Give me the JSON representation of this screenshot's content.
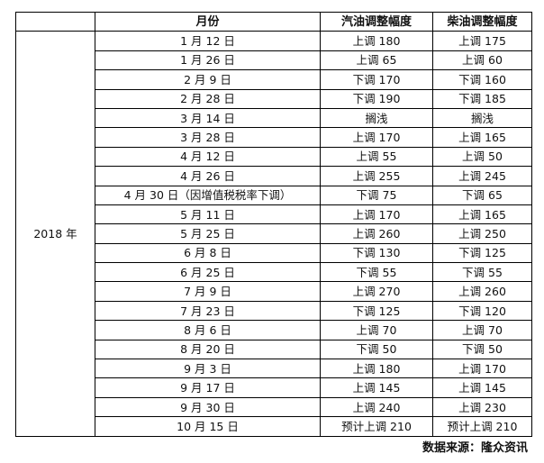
{
  "headers": [
    "",
    "月份",
    "汽油调整幅度",
    "柴油调整幅度"
  ],
  "year": "2018 年",
  "rows": [
    [
      "1 月 12 日",
      "上调 180",
      "上调 175"
    ],
    [
      "1 月 26 日",
      "上调 65",
      "上调 60"
    ],
    [
      "2 月 9 日",
      "下调 170",
      "下调 160"
    ],
    [
      "2 月 28 日",
      "下调 190",
      "下调 185"
    ],
    [
      "3 月 14 日",
      "搁浅",
      "搁浅"
    ],
    [
      "3 月 28 日",
      "上调 170",
      "上调 165"
    ],
    [
      "4 月 12 日",
      "上调 55",
      "上调 50"
    ],
    [
      "4 月 26 日",
      "上调 255",
      "上调 245"
    ],
    [
      "4 月 30 日（因增值税税率下调）",
      "下调 75",
      "下调 65"
    ],
    [
      "5 月 11 日",
      "上调 170",
      "上调 165"
    ],
    [
      "5 月 25 日",
      "上调 260",
      "上调 250"
    ],
    [
      "6 月 8 日",
      "下调 130",
      "下调 125"
    ],
    [
      "6 月 25 日",
      "下调 55",
      "下调 55"
    ],
    [
      "7 月 9 日",
      "上调 270",
      "上调 260"
    ],
    [
      "7 月 23 日",
      "下调 125",
      "下调 120"
    ],
    [
      "8 月 6 日",
      "上调 70",
      "上调 70"
    ],
    [
      "8 月 20 日",
      "下调 50",
      "下调 50"
    ],
    [
      "9 月 3 日",
      "上调 180",
      "上调 170"
    ],
    [
      "9 月 17 日",
      "上调 145",
      "上调 145"
    ],
    [
      "9 月 30 日",
      "上调 240",
      "上调 230"
    ],
    [
      "10 月 15 日",
      "预计上调 210",
      "预计上调 210"
    ]
  ],
  "source": "数据来源：隆众资讯"
}
